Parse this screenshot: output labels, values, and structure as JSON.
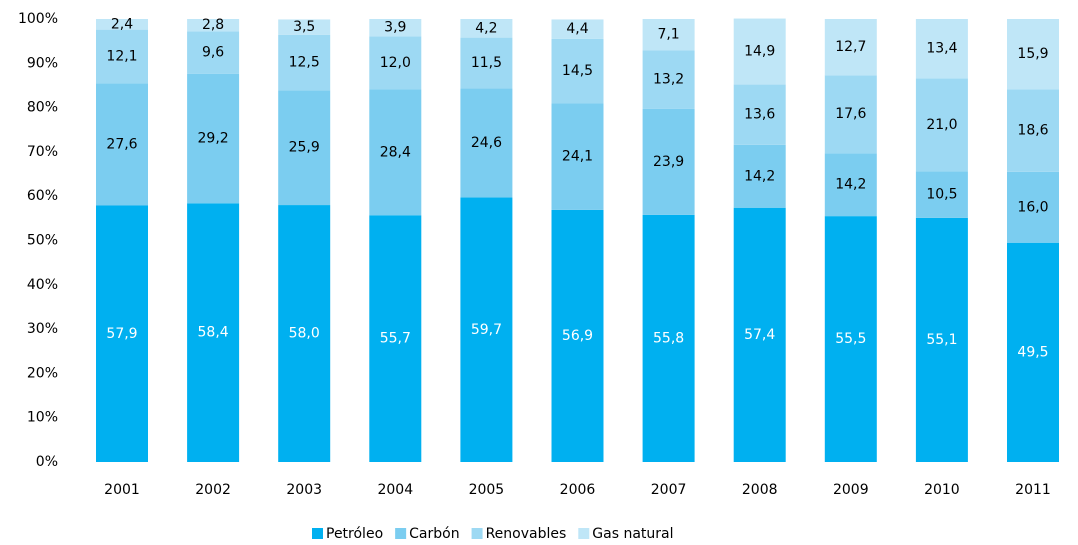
{
  "chart_data": {
    "type": "stacked_bar",
    "categories": [
      "2001",
      "2002",
      "2003",
      "2004",
      "2005",
      "2006",
      "2007",
      "2008",
      "2009",
      "2010",
      "2011"
    ],
    "series": [
      {
        "name": "Petróleo",
        "color": "#00b0f0",
        "values": [
          57.9,
          58.4,
          58.0,
          55.7,
          59.7,
          56.9,
          55.8,
          57.4,
          55.5,
          55.1,
          49.5
        ],
        "value_labels": [
          "57,9",
          "58,4",
          "58,0",
          "55,7",
          "59,7",
          "56,9",
          "55,8",
          "57,4",
          "55,5",
          "55,1",
          "49,5"
        ]
      },
      {
        "name": "Carbón",
        "color": "#7bcdf0",
        "values": [
          27.6,
          29.2,
          25.9,
          28.4,
          24.6,
          24.1,
          23.9,
          14.2,
          14.2,
          10.5,
          16.0
        ],
        "value_labels": [
          "27,6",
          "29,2",
          "25,9",
          "28,4",
          "24,6",
          "24,1",
          "23,9",
          "14,2",
          "14,2",
          "10,5",
          "16,0"
        ]
      },
      {
        "name": "Renovables",
        "color": "#9dd9f3",
        "values": [
          12.1,
          9.6,
          12.5,
          12.0,
          11.5,
          14.5,
          13.2,
          13.6,
          17.6,
          21.0,
          18.6
        ],
        "value_labels": [
          "12,1",
          "9,6",
          "12,5",
          "12,0",
          "11,5",
          "14,5",
          "13,2",
          "13,6",
          "17,6",
          "21,0",
          "18,6"
        ]
      },
      {
        "name": "Gas natural",
        "color": "#bfe6f7",
        "values": [
          2.4,
          2.8,
          3.5,
          3.9,
          4.2,
          4.4,
          7.1,
          14.9,
          12.7,
          13.4,
          15.9
        ],
        "value_labels": [
          "2,4",
          "2,8",
          "3,5",
          "3,9",
          "4,2",
          "4,4",
          "7,1",
          "14,9",
          "12,7",
          "13,4",
          "15,9"
        ]
      }
    ],
    "ylim": [
      0,
      100
    ],
    "yticks": [
      {
        "value": 0,
        "label": "0%"
      },
      {
        "value": 10,
        "label": "10%"
      },
      {
        "value": 20,
        "label": "20%"
      },
      {
        "value": 30,
        "label": "30%"
      },
      {
        "value": 40,
        "label": "40%"
      },
      {
        "value": 50,
        "label": "50%"
      },
      {
        "value": 60,
        "label": "60%"
      },
      {
        "value": 70,
        "label": "70%"
      },
      {
        "value": 80,
        "label": "80%"
      },
      {
        "value": 90,
        "label": "90%"
      },
      {
        "value": 100,
        "label": "100%"
      }
    ],
    "legend": "bottom"
  }
}
